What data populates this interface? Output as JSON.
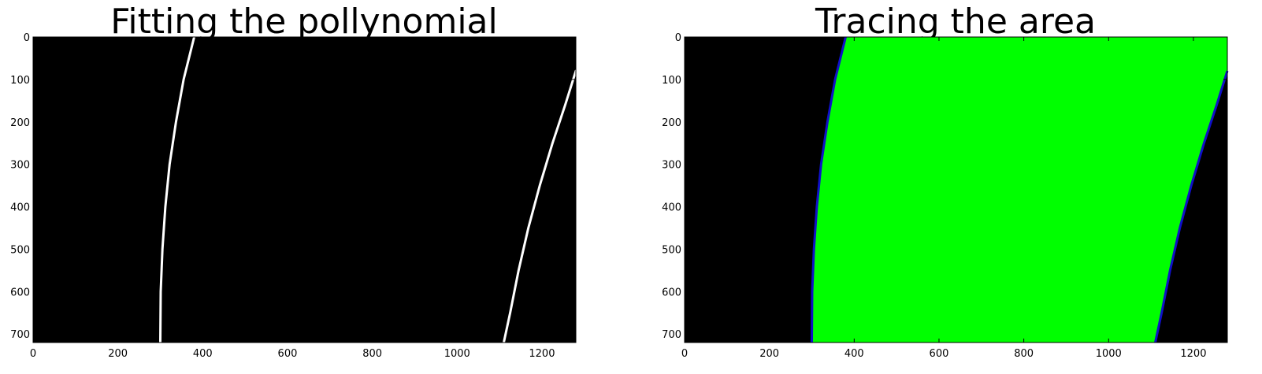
{
  "chart_data": [
    {
      "type": "image",
      "title": "Fitting the pollynomial",
      "xlim": [
        0,
        1280
      ],
      "ylim": [
        720,
        0
      ],
      "xticks": [
        "0",
        "200",
        "400",
        "600",
        "800",
        "1000",
        "1200"
      ],
      "yticks": [
        "0",
        "100",
        "200",
        "300",
        "400",
        "500",
        "600",
        "700"
      ],
      "grid": false,
      "background": "#000000",
      "series": [
        {
          "color": "#ffffff",
          "points": [
            [
              380,
              0
            ],
            [
              355,
              100
            ],
            [
              337,
              200
            ],
            [
              322,
              300
            ],
            [
              312,
              400
            ],
            [
              305,
              500
            ],
            [
              301,
              600
            ],
            [
              300,
              720
            ]
          ]
        },
        {
          "color": "#ffffff",
          "points": [
            [
              1280,
              80
            ],
            [
              1255,
              160
            ],
            [
              1225,
              250
            ],
            [
              1195,
              350
            ],
            [
              1168,
              450
            ],
            [
              1145,
              550
            ],
            [
              1125,
              650
            ],
            [
              1110,
              720
            ]
          ]
        }
      ]
    },
    {
      "type": "image",
      "title": "Tracing the area",
      "xlim": [
        0,
        1280
      ],
      "ylim": [
        720,
        0
      ],
      "xticks": [
        "0",
        "200",
        "400",
        "600",
        "800",
        "1000",
        "1200"
      ],
      "yticks": [
        "0",
        "100",
        "200",
        "300",
        "400",
        "500",
        "600",
        "700"
      ],
      "grid": false,
      "background": "#000000",
      "fill_color": "#00ff00",
      "edge_color": "#1010c8",
      "left_boundary": [
        [
          380,
          0
        ],
        [
          355,
          100
        ],
        [
          337,
          200
        ],
        [
          322,
          300
        ],
        [
          312,
          400
        ],
        [
          305,
          500
        ],
        [
          301,
          600
        ],
        [
          300,
          720
        ]
      ],
      "right_boundary": [
        [
          1280,
          0
        ],
        [
          1280,
          80
        ],
        [
          1255,
          160
        ],
        [
          1225,
          250
        ],
        [
          1195,
          350
        ],
        [
          1168,
          450
        ],
        [
          1145,
          550
        ],
        [
          1125,
          650
        ],
        [
          1110,
          720
        ]
      ]
    }
  ]
}
